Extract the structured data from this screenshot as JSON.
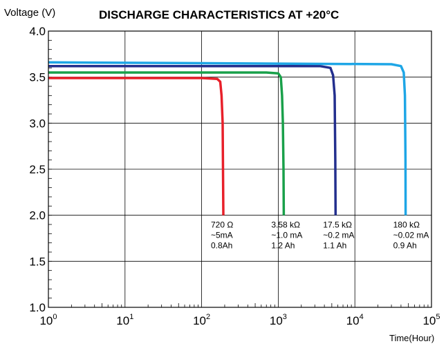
{
  "chart_data": {
    "type": "line",
    "title": "DISCHARGE CHARACTERISTICS AT +20°C",
    "ylabel": "Voltage (V)",
    "xlabel": "Time(Hour)",
    "xscale": "log",
    "xlim": [
      1,
      100000
    ],
    "ylim": [
      1.0,
      4.0
    ],
    "grid": true,
    "yticks": [
      "1.0",
      "1.5",
      "2.0",
      "2.5",
      "3.0",
      "3.5",
      "4.0"
    ],
    "xticks": [
      {
        "base": "10",
        "exp": "0"
      },
      {
        "base": "10",
        "exp": "1"
      },
      {
        "base": "10",
        "exp": "2"
      },
      {
        "base": "10",
        "exp": "3"
      },
      {
        "base": "10",
        "exp": "4"
      },
      {
        "base": "10",
        "exp": "5"
      }
    ],
    "series": [
      {
        "color": "#e8202a",
        "x": [
          1,
          100,
          160,
          175,
          182,
          188,
          190,
          192
        ],
        "y": [
          3.49,
          3.49,
          3.48,
          3.45,
          3.3,
          3.0,
          2.5,
          2.0
        ],
        "annotation": [
          "720 Ω",
          "~5mA",
          "0.8Ah"
        ]
      },
      {
        "color": "#19a04a",
        "x": [
          1,
          700,
          1000,
          1080,
          1120,
          1150,
          1170,
          1180
        ],
        "y": [
          3.55,
          3.55,
          3.54,
          3.5,
          3.3,
          3.0,
          2.5,
          2.0
        ],
        "annotation": [
          "3.58 kΩ",
          "~1.0 mA",
          "1.2 Ah"
        ]
      },
      {
        "color": "#232f8e",
        "x": [
          1,
          3500,
          4800,
          5200,
          5450,
          5550,
          5600
        ],
        "y": [
          3.62,
          3.62,
          3.6,
          3.52,
          3.3,
          2.6,
          2.0
        ],
        "annotation": [
          "17.5 kΩ",
          "~0.2 mA",
          "1.1 Ah"
        ]
      },
      {
        "color": "#1ea6e6",
        "x": [
          1,
          30000,
          40000,
          43500,
          45000,
          45800,
          46000
        ],
        "y": [
          3.66,
          3.64,
          3.62,
          3.55,
          3.3,
          2.6,
          2.0
        ],
        "annotation": [
          "180 kΩ",
          "~0.02 mA",
          "0.9 Ah"
        ]
      }
    ]
  }
}
